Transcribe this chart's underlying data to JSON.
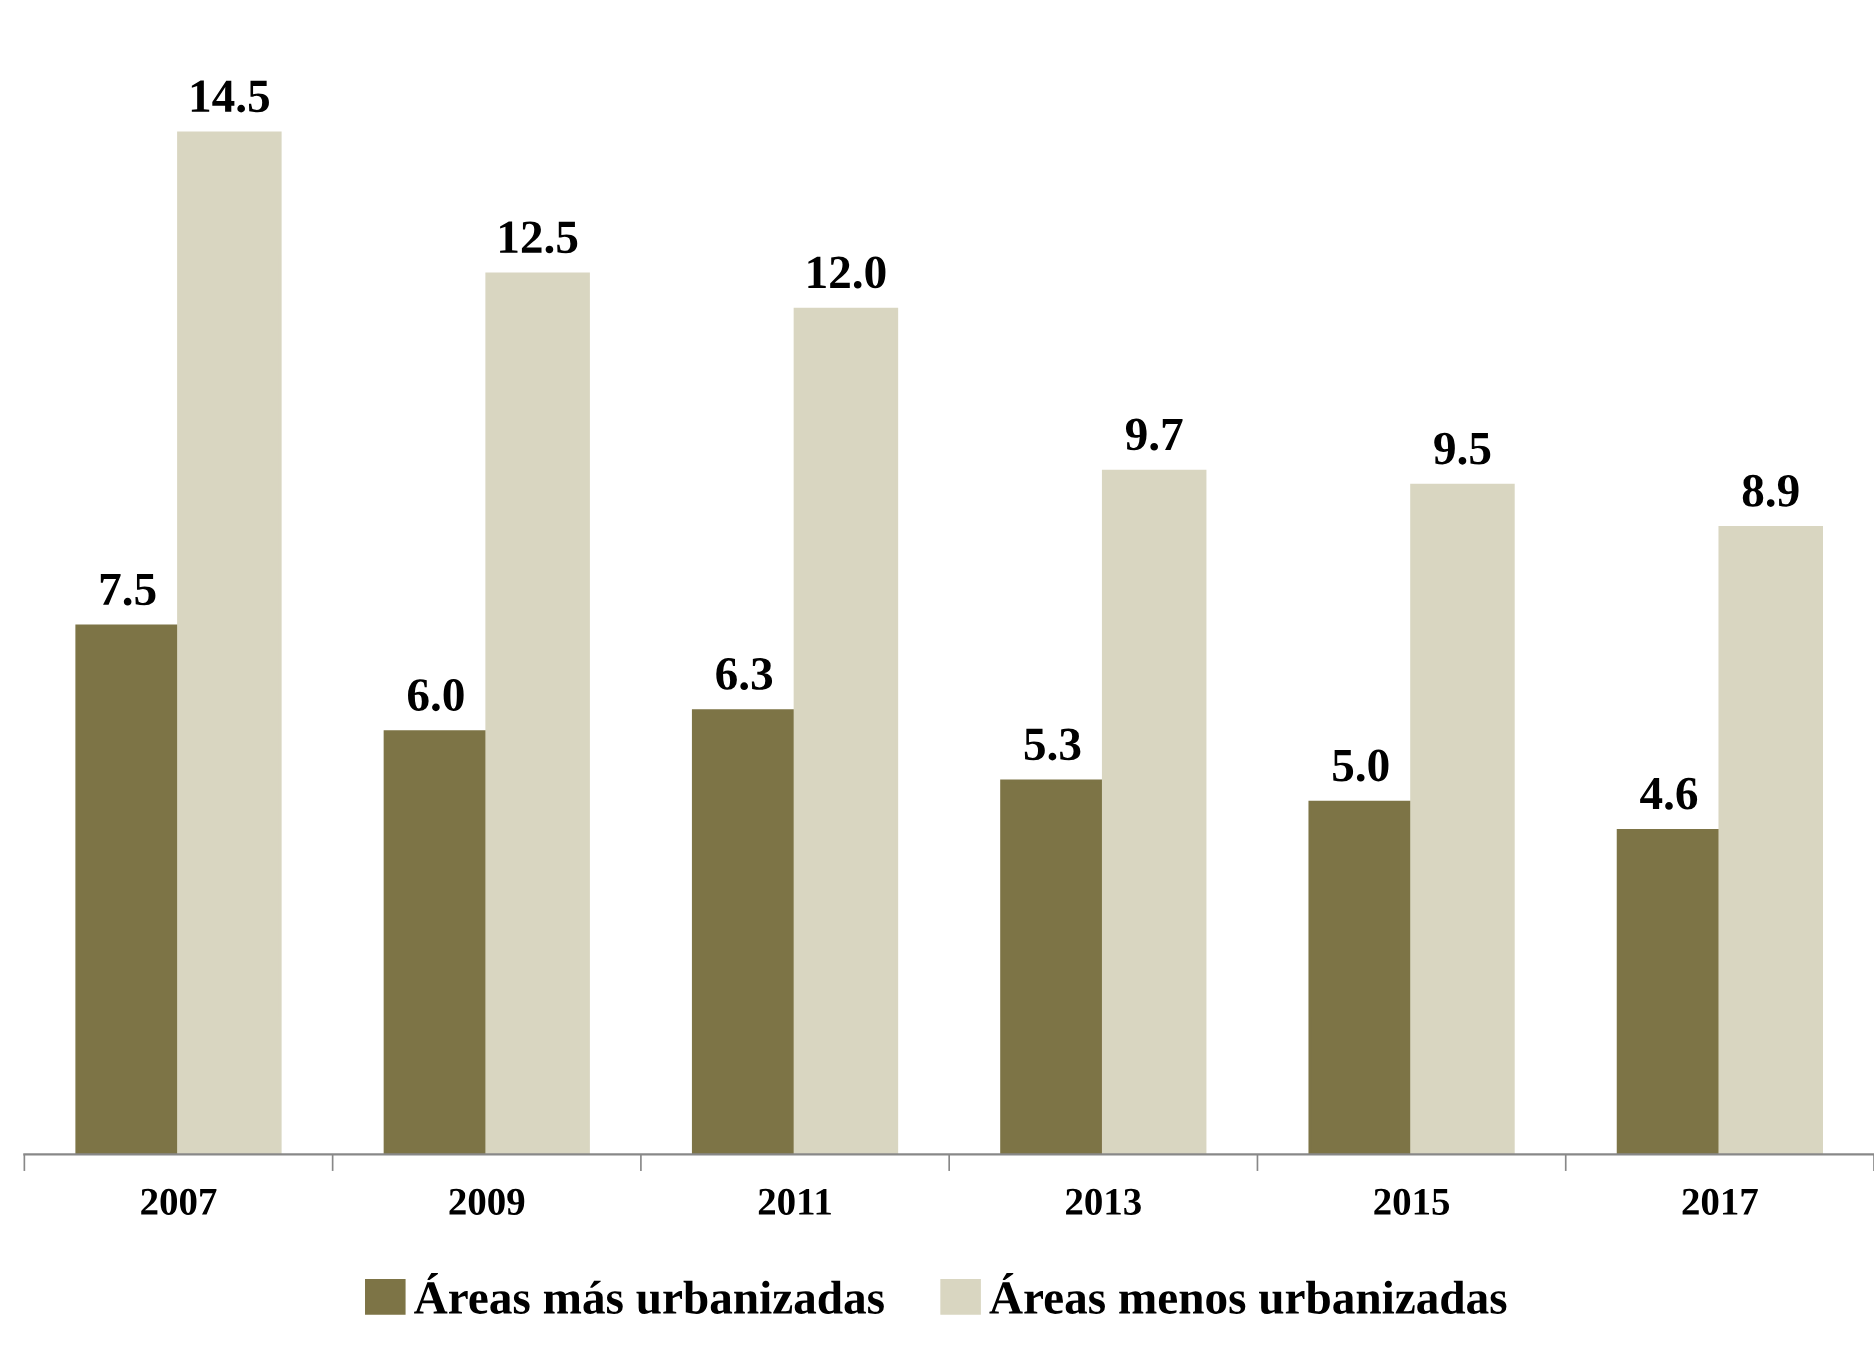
{
  "chart_data": {
    "type": "bar",
    "categories": [
      "2007",
      "2009",
      "2011",
      "2013",
      "2015",
      "2017"
    ],
    "series": [
      {
        "name": "Áreas más urbanizadas",
        "color": "#7d7446",
        "values": [
          7.5,
          6.0,
          6.3,
          5.3,
          5.0,
          4.6
        ],
        "value_labels": [
          "7.5",
          "6.0",
          "6.3",
          "5.3",
          "5.0",
          "4.6"
        ]
      },
      {
        "name": "Áreas menos urbanizadas",
        "color": "#d9d6c1",
        "values": [
          14.5,
          12.5,
          12.0,
          9.7,
          9.5,
          8.9
        ],
        "value_labels": [
          "14.5",
          "12.5",
          "12.0",
          "9.7",
          "9.5",
          "8.9"
        ]
      }
    ],
    "legend": "bottom",
    "grid": false
  }
}
